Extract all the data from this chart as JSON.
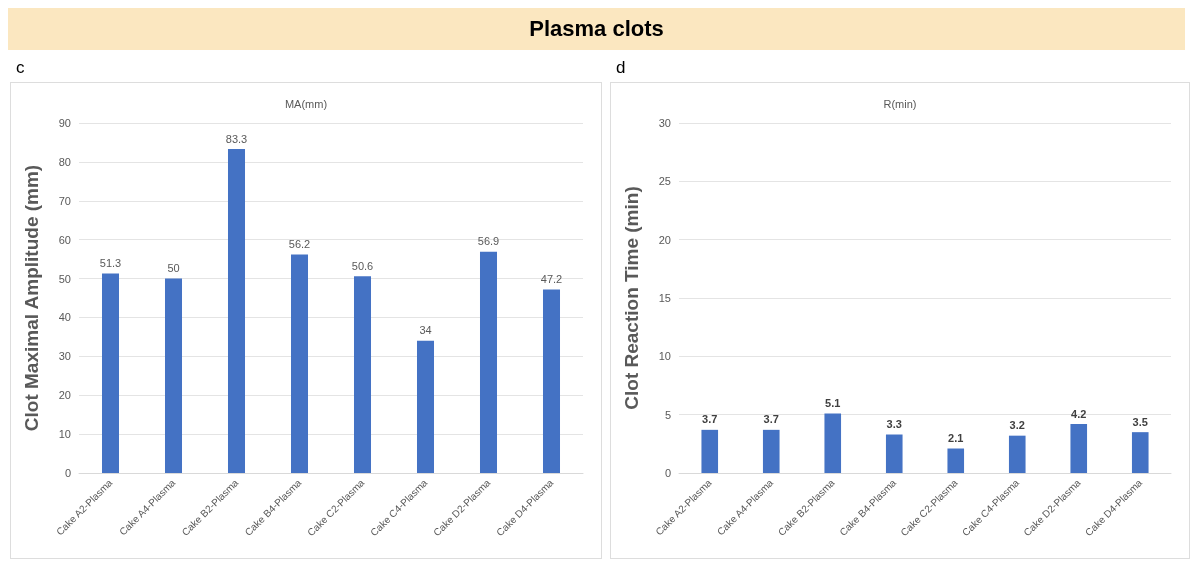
{
  "chart_data": [
    {
      "type": "bar",
      "title": "MA(mm)",
      "ylabel": "Clot Maximal Amplitude (mm)",
      "annotations": [
        "c",
        "Plasma clots"
      ],
      "categories": [
        "Cake A2-Plasma",
        "Cake A4-Plasma",
        "Cake B2-Plasma",
        "Cake B4-Plasma",
        "Cake C2-Plasma",
        "Cake C4-Plasma",
        "Cake D2-Plasma",
        "Cake D4-Plasma"
      ],
      "values": [
        51.3,
        50,
        83.3,
        56.2,
        50.6,
        34,
        56.9,
        47.2
      ],
      "color": "#4472c4",
      "ylim": [
        0,
        90
      ],
      "yticks": [
        0,
        10,
        20,
        30,
        40,
        50,
        60,
        70,
        80,
        90
      ],
      "grid": "y",
      "data_labels": true
    },
    {
      "type": "bar",
      "title": "R(min)",
      "ylabel": "Clot Reaction Time (min)",
      "annotations": [
        "d"
      ],
      "categories": [
        "Cake A2-Plasma",
        "Cake A4-Plasma",
        "Cake B2-Plasma",
        "Cake B4-Plasma",
        "Cake C2-Plasma",
        "Cake C4-Plasma",
        "Cake D2-Plasma",
        "Cake D4-Plasma"
      ],
      "values": [
        3.7,
        3.7,
        5.1,
        3.3,
        2.1,
        3.2,
        4.2,
        3.5
      ],
      "color": "#4472c4",
      "ylim": [
        0,
        30
      ],
      "yticks": [
        0,
        5,
        10,
        15,
        20,
        25,
        30
      ],
      "grid": "y",
      "data_labels": true
    }
  ]
}
